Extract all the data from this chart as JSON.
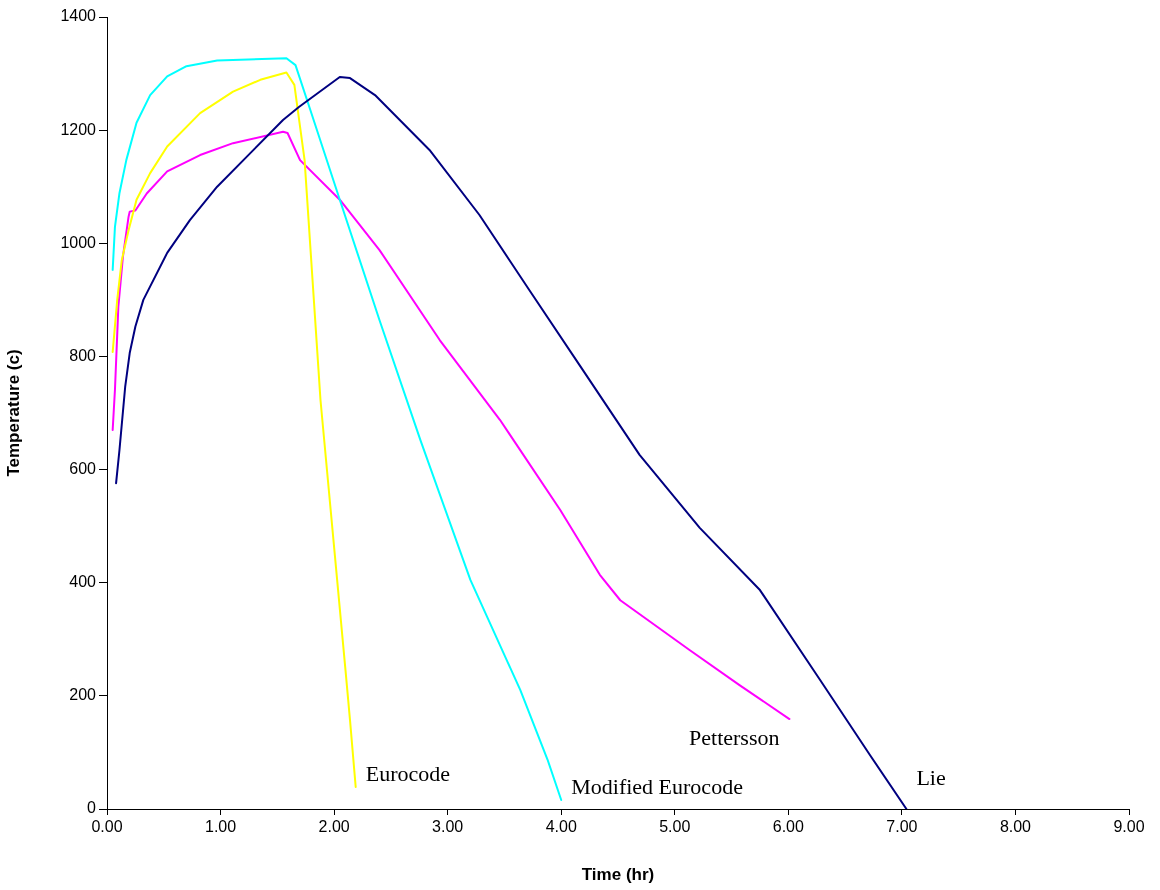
{
  "chart_data": {
    "type": "line",
    "xlabel": "Time (hr)",
    "ylabel": "Temperature (c)",
    "xlim": [
      0,
      9
    ],
    "xticks": [
      {
        "value": 0,
        "label": "0.00"
      },
      {
        "value": 1,
        "label": "1.00"
      },
      {
        "value": 2,
        "label": "2.00"
      },
      {
        "value": 3,
        "label": "3.00"
      },
      {
        "value": 4,
        "label": "4.00"
      },
      {
        "value": 5,
        "label": "5.00"
      },
      {
        "value": 6,
        "label": "6.00"
      },
      {
        "value": 7,
        "label": "7.00"
      },
      {
        "value": 8,
        "label": "8.00"
      },
      {
        "value": 9,
        "label": "9.00"
      }
    ],
    "ylim": [
      0,
      1400
    ],
    "yticks": [
      0,
      200,
      400,
      600,
      800,
      1000,
      1200,
      1400
    ],
    "grid": false,
    "legend": false,
    "marker": "none",
    "line_style": "solid",
    "series": [
      {
        "name": "Lie",
        "color": "#000080",
        "x": [
          0.08,
          0.11,
          0.16,
          0.2,
          0.25,
          0.32,
          0.53,
          0.73,
          0.97,
          1.26,
          1.55,
          1.69,
          2.05,
          2.14,
          2.36,
          2.84,
          3.28,
          3.72,
          4.16,
          4.69,
          5.22,
          5.75,
          6.28,
          6.72,
          7.04
        ],
        "values": [
          576,
          635,
          746,
          806,
          853,
          900,
          983,
          1041,
          1100,
          1159,
          1218,
          1241,
          1294,
          1292,
          1262,
          1165,
          1050,
          917,
          785,
          626,
          497,
          387,
          228,
          95,
          0
        ]
      },
      {
        "name": "Modified Eurocode",
        "color": "#00ffff",
        "x": [
          0.05,
          0.07,
          0.11,
          0.17,
          0.26,
          0.38,
          0.53,
          0.7,
          0.97,
          1.58,
          1.66,
          1.79,
          2.05,
          2.4,
          2.76,
          3.2,
          3.64,
          3.88,
          4.0
        ],
        "values": [
          953,
          1029,
          1089,
          1147,
          1213,
          1262,
          1295,
          1313,
          1323,
          1327,
          1315,
          1236,
          1077,
          864,
          652,
          405,
          210,
          87,
          16
        ]
      },
      {
        "name": "Eurocode",
        "color": "#ffff00",
        "x": [
          0.05,
          0.09,
          0.13,
          0.19,
          0.26,
          0.38,
          0.53,
          0.82,
          1.11,
          1.35,
          1.58,
          1.65,
          1.74,
          1.88,
          2.1,
          2.14,
          2.19
        ],
        "values": [
          808,
          900,
          970,
          1023,
          1077,
          1124,
          1171,
          1230,
          1268,
          1289,
          1302,
          1280,
          1147,
          723,
          246,
          157,
          39
        ]
      },
      {
        "name": "Pettersson",
        "color": "#ff00ff",
        "x": [
          0.05,
          0.07,
          0.1,
          0.14,
          0.19,
          0.2,
          0.25,
          0.35,
          0.53,
          0.82,
          1.11,
          1.55,
          1.59,
          1.7,
          2.05,
          2.4,
          2.93,
          3.46,
          3.99,
          4.34,
          4.52,
          5.13,
          5.57,
          6.01
        ],
        "values": [
          670,
          741,
          888,
          976,
          1047,
          1056,
          1058,
          1088,
          1127,
          1156,
          1177,
          1197,
          1195,
          1147,
          1077,
          988,
          829,
          688,
          529,
          414,
          369,
          281,
          219,
          159
        ]
      }
    ]
  }
}
